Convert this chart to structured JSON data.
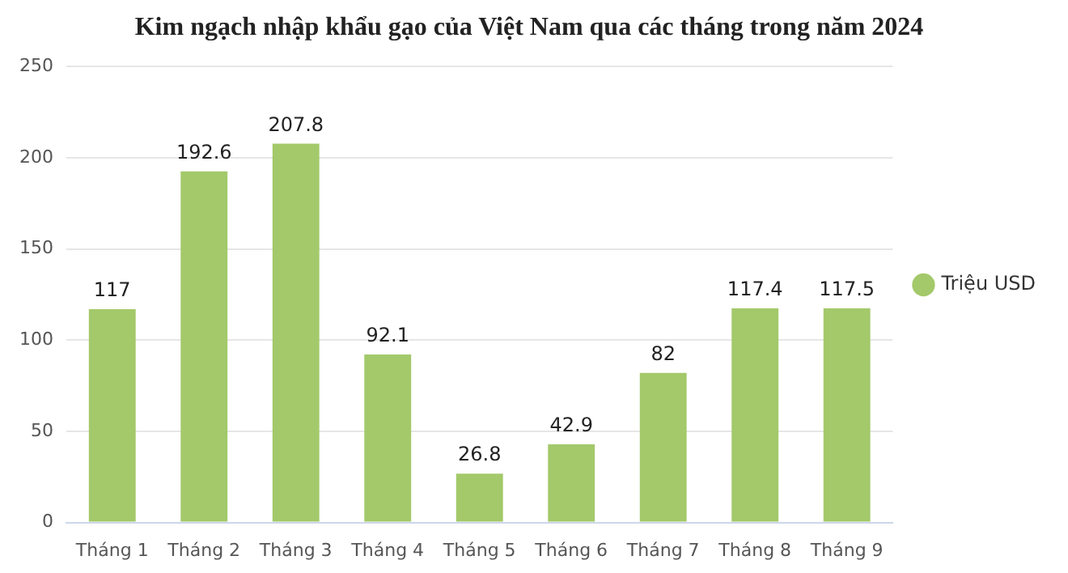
{
  "chart_data": {
    "type": "bar",
    "title": "Kim ngạch nhập khẩu gạo của Việt Nam qua các tháng trong năm 2024",
    "categories": [
      "Tháng 1",
      "Tháng 2",
      "Tháng 3",
      "Tháng 4",
      "Tháng 5",
      "Tháng 6",
      "Tháng 7",
      "Tháng 8",
      "Tháng 9"
    ],
    "series": [
      {
        "name": "Triệu USD",
        "color": "#a3c96a",
        "values": [
          117,
          192.6,
          207.8,
          92.1,
          26.8,
          42.9,
          82,
          117.4,
          117.5
        ]
      }
    ],
    "ylim": [
      0,
      250
    ],
    "yticks": [
      0,
      50,
      100,
      150,
      200,
      250
    ],
    "grid": "y",
    "legend": "right",
    "data_labels": true
  }
}
